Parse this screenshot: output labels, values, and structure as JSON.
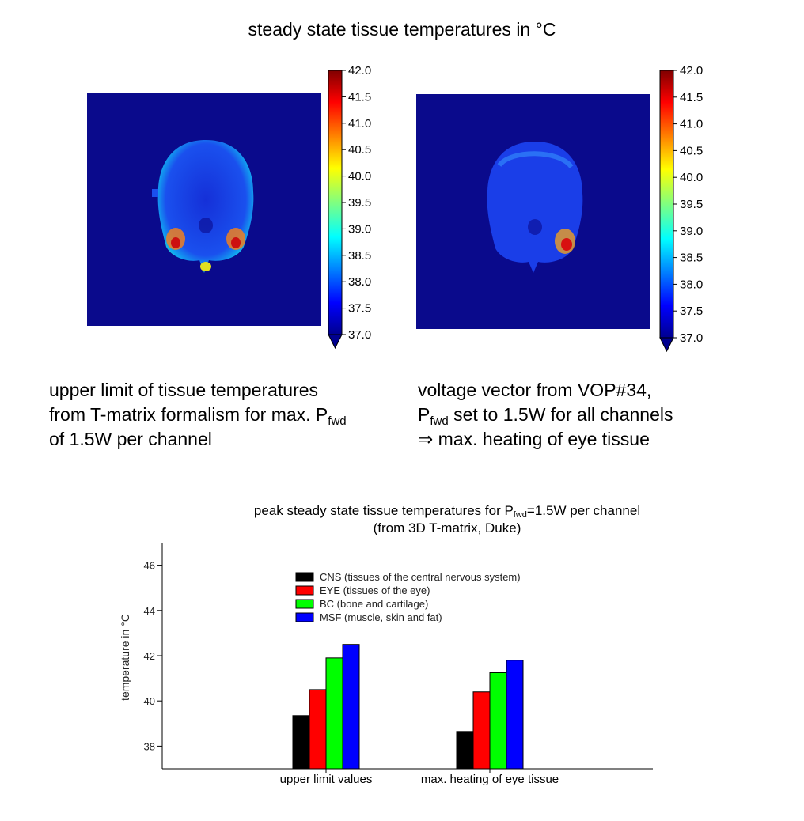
{
  "main_title": "steady state tissue temperatures in °C",
  "colorbar": {
    "min": 37.0,
    "max": 42.0,
    "ticks": [
      "42.0",
      "41.5",
      "41.0",
      "40.5",
      "40.0",
      "39.5",
      "39.0",
      "38.5",
      "38.0",
      "37.5",
      "37.0"
    ]
  },
  "left_caption": {
    "line1": "upper limit of tissue temperatures",
    "line2_prefix": "from T-matrix formalism for max. P",
    "line2_sub": "fwd",
    "line3": "of 1.5W per channel"
  },
  "right_caption": {
    "line1": "voltage vector from VOP#34,",
    "line2_prefix": "P",
    "line2_sub": "fwd",
    "line2_suffix": " set to 1.5W for all channels",
    "line3_arrow": "⇒",
    "line3": " max. heating of eye tissue"
  },
  "chart_data": {
    "type": "bar",
    "title_prefix": "peak steady state tissue temperatures for P",
    "title_sub": "fwd",
    "title_suffix": "=1.5W per channel",
    "subtitle": "(from 3D T-matrix, Duke)",
    "xlabel": "",
    "ylabel": "temperature in °C",
    "ylim": [
      37.0,
      47.0
    ],
    "yticks": [
      38,
      40,
      42,
      44,
      46
    ],
    "categories": [
      "upper limit values",
      "max. heating of eye tissue"
    ],
    "series": [
      {
        "name": "CNS (tissues of the central nervous system)",
        "color": "#000000",
        "values": [
          39.35,
          38.65
        ]
      },
      {
        "name": "EYE (tissues of the eye)",
        "color": "#ff0000",
        "values": [
          40.5,
          40.4
        ]
      },
      {
        "name": "BC (bone and cartilage)",
        "color": "#00ff00",
        "values": [
          41.9,
          41.25
        ]
      },
      {
        "name": "MSF (muscle, skin and fat)",
        "color": "#0000ff",
        "values": [
          42.5,
          41.8
        ]
      }
    ],
    "legend_position": "top-center"
  }
}
